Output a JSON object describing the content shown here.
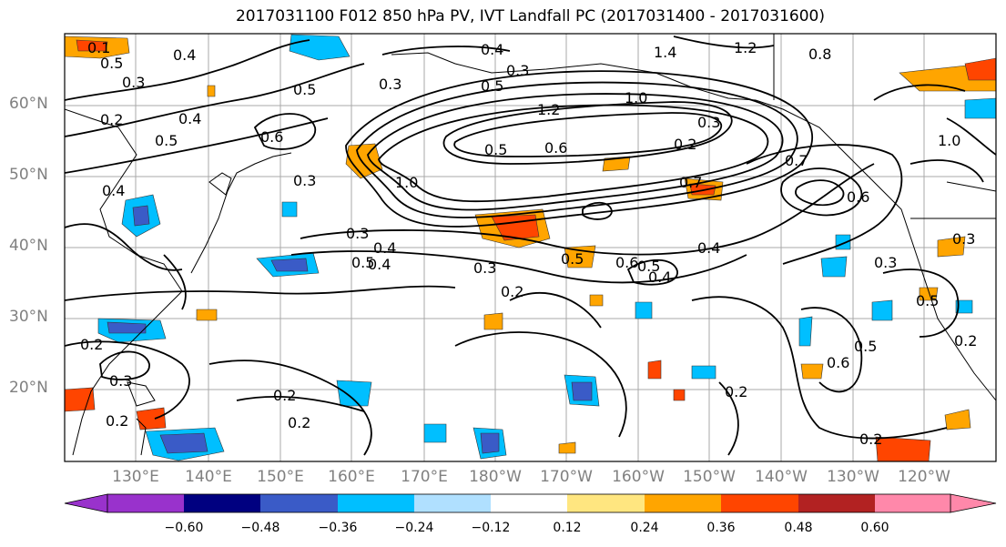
{
  "title": "2017031100 F012 850 hPa PV, IVT Landfall PC (2017031400 - 2017031600)",
  "lat_labels": [
    "60°N",
    "50°N",
    "40°N",
    "30°N",
    "20°N"
  ],
  "lon_labels": [
    "130°E",
    "140°E",
    "150°E",
    "160°E",
    "170°E",
    "180°W",
    "170°W",
    "160°W",
    "150°W",
    "140°W",
    "130°W",
    "120°W"
  ],
  "colorbar": {
    "colors": [
      "#9932cc",
      "#000080",
      "#3a5bc7",
      "#00bfff",
      "#b0e0ff",
      "#ffffff",
      "#ffe680",
      "#ffa500",
      "#ff4500",
      "#b22222",
      "#ff88aa"
    ],
    "ticks": [
      "−0.60",
      "−0.48",
      "−0.36",
      "−0.24",
      "−0.12",
      "0.12",
      "0.24",
      "0.36",
      "0.48",
      "0.60"
    ]
  },
  "contour_labels": [
    "0.4",
    "0.1",
    "0.5",
    "0.3",
    "0.2",
    "0.5",
    "0.4",
    "0.6",
    "0.5",
    "0.3",
    "0.4",
    "0.3",
    "1.4",
    "1.2",
    "0.8",
    "0.5",
    "1.0",
    "1.2",
    "0.3",
    "0.2",
    "0.5",
    "0.6",
    "1.0",
    "0.3",
    "0.3",
    "0.4",
    "0.5",
    "0.4",
    "0.3",
    "0.5",
    "0.6",
    "0.7",
    "0.4",
    "0.4",
    "0.7",
    "0.5",
    "0.6",
    "0.2",
    "0.3",
    "0.3",
    "0.2",
    "0.2",
    "0.2",
    "0.6",
    "0.5",
    "0.2",
    "0.2",
    "0.2",
    "1.0",
    "0.5",
    "0.4",
    "0.3",
    "0.2"
  ]
}
